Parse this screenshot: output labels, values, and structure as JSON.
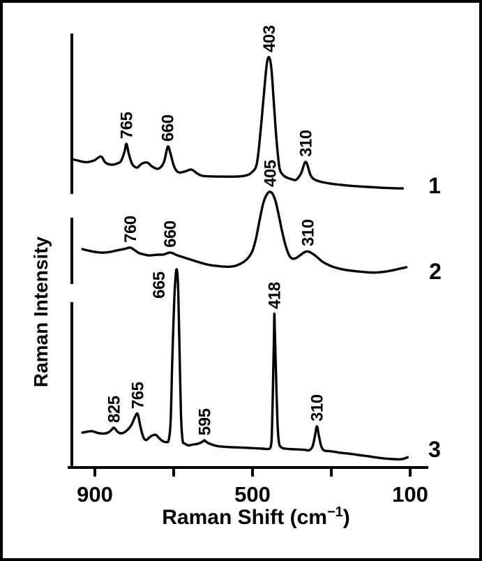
{
  "figure": {
    "background_color": "#ffffff",
    "ink_color": "#000000",
    "frame_color": "#000000"
  },
  "chart_data": {
    "type": "line",
    "title": "",
    "xlabel": "Raman Shift (cm−1)",
    "ylabel": "Raman Intensity",
    "legend": "none",
    "grid": "off",
    "x_axis": {
      "label_pre": "Raman Shift (cm",
      "label_sup": "−1",
      "label_post": ")",
      "direction": "values decrease left to right",
      "range": [
        960,
        60
      ],
      "ticks": [
        {
          "value": 900,
          "label": "900"
        },
        {
          "value": 700,
          "label": ""
        },
        {
          "value": 500,
          "label": "500"
        },
        {
          "value": 300,
          "label": ""
        },
        {
          "value": 100,
          "label": "100"
        }
      ]
    },
    "y_axis": {
      "label": "Raman Intensity",
      "units": "arbitrary units, three offset spectra with broken axis segments"
    },
    "intensity_units": "percent of each series' maximum peak height",
    "series": [
      {
        "name": "1",
        "peaks": [
          {
            "label": "765",
            "shift": 765,
            "intensity": 15
          },
          {
            "label": "660",
            "shift": 660,
            "intensity": 12.3
          },
          {
            "label": "403",
            "shift": 403,
            "intensity": 100
          },
          {
            "label": "310",
            "shift": 310,
            "intensity": -2.7
          }
        ],
        "trace": [
          [
            904,
            0
          ],
          [
            888,
            -1.5
          ],
          [
            868,
            -3
          ],
          [
            848,
            -1.5
          ],
          [
            830,
            2.5
          ],
          [
            818,
            -3.5
          ],
          [
            803,
            -5.5
          ],
          [
            790,
            -4.5
          ],
          [
            779,
            -2
          ],
          [
            770,
            7
          ],
          [
            765,
            15
          ],
          [
            759,
            5
          ],
          [
            751,
            -4.5
          ],
          [
            744,
            -7.5
          ],
          [
            737,
            -8.2
          ],
          [
            726,
            -4.5
          ],
          [
            712,
            -3.4
          ],
          [
            701,
            -7
          ],
          [
            688,
            -9.5
          ],
          [
            678,
            -8
          ],
          [
            669,
            -2
          ],
          [
            660,
            12.3
          ],
          [
            653,
            5
          ],
          [
            646,
            -5
          ],
          [
            639,
            -11
          ],
          [
            630,
            -13.2
          ],
          [
            615,
            -12
          ],
          [
            600,
            -10.3
          ],
          [
            586,
            -14
          ],
          [
            573,
            -16.4
          ],
          [
            552,
            -17
          ],
          [
            520,
            -17.2
          ],
          [
            490,
            -17.2
          ],
          [
            464,
            -16.3
          ],
          [
            447,
            -13
          ],
          [
            434,
            -4
          ],
          [
            424,
            30
          ],
          [
            416,
            65
          ],
          [
            409,
            93
          ],
          [
            403,
            100
          ],
          [
            397,
            88
          ],
          [
            391,
            55
          ],
          [
            384,
            18
          ],
          [
            377,
            -8
          ],
          [
            369,
            -15
          ],
          [
            359,
            -18
          ],
          [
            347,
            -19.6
          ],
          [
            335,
            -20.4
          ],
          [
            322,
            -14
          ],
          [
            310,
            -2.7
          ],
          [
            298,
            -15.5
          ],
          [
            287,
            -20.2
          ],
          [
            268,
            -22.6
          ],
          [
            243,
            -24.3
          ],
          [
            213,
            -25.6
          ],
          [
            183,
            -26.6
          ],
          [
            148,
            -27.4
          ],
          [
            113,
            -28.2
          ],
          [
            83,
            -28.6
          ],
          [
            64,
            -28.8
          ]
        ]
      },
      {
        "name": "2",
        "peaks": [
          {
            "label": "760",
            "shift": 760,
            "intensity": 2.5
          },
          {
            "label": "660",
            "shift": 659,
            "intensity": -6
          },
          {
            "label": "405",
            "shift": 405,
            "intensity": 100
          },
          {
            "label": "310",
            "shift": 310,
            "intensity": -3.7
          }
        ],
        "trace": [
          [
            882,
            0
          ],
          [
            858,
            -4
          ],
          [
            832,
            -6.2
          ],
          [
            812,
            -5
          ],
          [
            796,
            -2.5
          ],
          [
            788,
            -1.5
          ],
          [
            774,
            0.5
          ],
          [
            760,
            2.5
          ],
          [
            748,
            -2.5
          ],
          [
            738,
            -7
          ],
          [
            725,
            -9.5
          ],
          [
            714,
            -11
          ],
          [
            701,
            -10.5
          ],
          [
            690,
            -9.8
          ],
          [
            676,
            -9.5
          ],
          [
            666,
            -7
          ],
          [
            659,
            -6
          ],
          [
            652,
            -7.5
          ],
          [
            643,
            -10.5
          ],
          [
            633,
            -12.8
          ],
          [
            618,
            -16
          ],
          [
            600,
            -20
          ],
          [
            583,
            -23.7
          ],
          [
            565,
            -27
          ],
          [
            550,
            -28.8
          ],
          [
            536,
            -29.8
          ],
          [
            521,
            -30.6
          ],
          [
            510,
            -30.8
          ],
          [
            495,
            -29.5
          ],
          [
            482,
            -26
          ],
          [
            470,
            -21
          ],
          [
            460,
            -14
          ],
          [
            450,
            -2
          ],
          [
            441,
            20
          ],
          [
            432,
            52
          ],
          [
            424,
            78
          ],
          [
            417,
            92
          ],
          [
            410,
            99
          ],
          [
            405,
            100
          ],
          [
            399,
            96
          ],
          [
            392,
            84
          ],
          [
            384,
            60
          ],
          [
            375,
            30
          ],
          [
            366,
            5
          ],
          [
            358,
            -10
          ],
          [
            350,
            -16.5
          ],
          [
            341,
            -16
          ],
          [
            330,
            -11
          ],
          [
            320,
            -6
          ],
          [
            312,
            -4
          ],
          [
            304,
            -5.5
          ],
          [
            295,
            -9.5
          ],
          [
            285,
            -15
          ],
          [
            272,
            -22.5
          ],
          [
            258,
            -27.5
          ],
          [
            244,
            -31.5
          ],
          [
            228,
            -34.5
          ],
          [
            210,
            -36.8
          ],
          [
            190,
            -38.5
          ],
          [
            168,
            -40
          ],
          [
            148,
            -41
          ],
          [
            128,
            -40.5
          ],
          [
            108,
            -38.8
          ],
          [
            90,
            -36.3
          ],
          [
            74,
            -33.8
          ],
          [
            60,
            -31.7
          ]
        ]
      },
      {
        "name": "3",
        "peaks": [
          {
            "label": "825",
            "shift": 825,
            "intensity": 3
          },
          {
            "label": "765",
            "shift": 765,
            "intensity": 11.6
          },
          {
            "label": "665",
            "shift": 665,
            "intensity": 100,
            "label_dx": -26,
            "label_dy": 47
          },
          {
            "label": "595",
            "shift": 595,
            "intensity": -4.8
          },
          {
            "label": "418",
            "shift": 418,
            "intensity": 73.3
          },
          {
            "label": "310",
            "shift": 310,
            "intensity": 3.9
          }
        ],
        "trace": [
          [
            905,
            0
          ],
          [
            882,
            0.9
          ],
          [
            866,
            -0.2
          ],
          [
            852,
            -0.6
          ],
          [
            840,
            0
          ],
          [
            832,
            1.5
          ],
          [
            825,
            3
          ],
          [
            817,
            0.8
          ],
          [
            809,
            -0.4
          ],
          [
            800,
            0
          ],
          [
            790,
            1.8
          ],
          [
            780,
            5
          ],
          [
            772,
            9.5
          ],
          [
            765,
            11.6
          ],
          [
            758,
            4
          ],
          [
            751,
            -2.5
          ],
          [
            744,
            -4.6
          ],
          [
            736,
            -3.2
          ],
          [
            728,
            -1.8
          ],
          [
            719,
            -1.4
          ],
          [
            710,
            -3.5
          ],
          [
            701,
            -5.3
          ],
          [
            693,
            -5.8
          ],
          [
            686,
            -4.5
          ],
          [
            681,
            8
          ],
          [
            677,
            45
          ],
          [
            672,
            82
          ],
          [
            668,
            98
          ],
          [
            665,
            100
          ],
          [
            662,
            88
          ],
          [
            659,
            55
          ],
          [
            655,
            12
          ],
          [
            651,
            -4.5
          ],
          [
            645,
            -6.8
          ],
          [
            636,
            -7.9
          ],
          [
            625,
            -7.4
          ],
          [
            614,
            -7
          ],
          [
            605,
            -6.2
          ],
          [
            598,
            -5.2
          ],
          [
            595,
            -4.8
          ],
          [
            588,
            -6.2
          ],
          [
            574,
            -7.6
          ],
          [
            560,
            -8.4
          ],
          [
            543,
            -8.8
          ],
          [
            520,
            -9.1
          ],
          [
            495,
            -9.3
          ],
          [
            470,
            -9.6
          ],
          [
            448,
            -9.9
          ],
          [
            435,
            -10.1
          ],
          [
            427,
            -8.5
          ],
          [
            424,
            2
          ],
          [
            421,
            35
          ],
          [
            419,
            60
          ],
          [
            418,
            73.3
          ],
          [
            417,
            65
          ],
          [
            414,
            38
          ],
          [
            410,
            6
          ],
          [
            406,
            -6.5
          ],
          [
            399,
            -9.3
          ],
          [
            390,
            -9.9
          ],
          [
            375,
            -10.2
          ],
          [
            358,
            -10.4
          ],
          [
            342,
            -10.6
          ],
          [
            330,
            -10.9
          ],
          [
            321,
            -8.5
          ],
          [
            315,
            -2
          ],
          [
            310,
            3.9
          ],
          [
            305,
            -2
          ],
          [
            299,
            -8.5
          ],
          [
            292,
            -11
          ],
          [
            280,
            -11.4
          ],
          [
            264,
            -11.9
          ],
          [
            246,
            -12.6
          ],
          [
            228,
            -13
          ],
          [
            208,
            -13.7
          ],
          [
            186,
            -14.4
          ],
          [
            163,
            -15.2
          ],
          [
            141,
            -15.9
          ],
          [
            120,
            -16.3
          ],
          [
            103,
            -16.5
          ],
          [
            91,
            -16.2
          ],
          [
            80,
            -15.2
          ]
        ]
      }
    ]
  }
}
